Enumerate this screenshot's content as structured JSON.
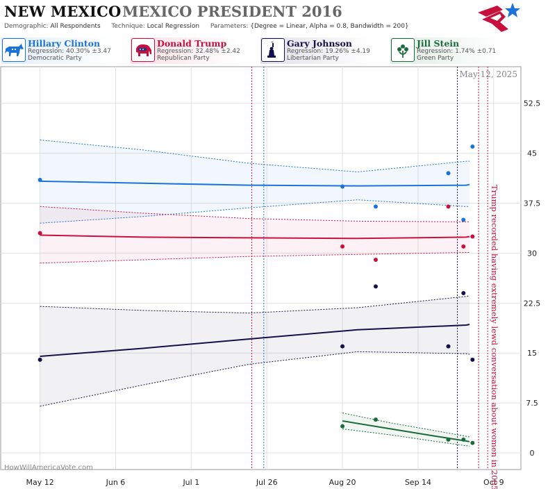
{
  "header": {
    "state": "NEW MEXICO",
    "race": "MEXICO PRESIDENT 2016",
    "demographic_label": "Demographic:",
    "demographic": "All Respondents",
    "technique_label": "Technique:",
    "technique": "Local Regression",
    "parameters_label": "Parameters:",
    "parameters": "{Degree = Linear, Alpha = 0.8, Bandwidth = 200}"
  },
  "candidates": [
    {
      "name": "Hillary Clinton",
      "regression": "Regression: 40.30% ±3.47",
      "party": "Democratic Party",
      "color": "#1a73d9",
      "icon": "donkey-icon"
    },
    {
      "name": "Donald Trump",
      "regression": "Regression: 32.48% ±2.42",
      "party": "Republican Party",
      "color": "#c8103e",
      "icon": "elephant-icon"
    },
    {
      "name": "Gary Johnson",
      "regression": "Regression: 19.26% ±4.19",
      "party": "Libertarian Party",
      "color": "#14104a",
      "icon": "statue-of-liberty-icon"
    },
    {
      "name": "Jill Stein",
      "regression": "Regression: 1.74% ±0.71",
      "party": "Green Party",
      "color": "#1a6b3a",
      "icon": "flower-icon"
    }
  ],
  "chart_data": {
    "type": "line",
    "date_stamp": "May 12, 2025",
    "watermark": "HowWillAmericaVote.com",
    "annotation": "Trump recorded having extremely lewd conversation about women in 2005",
    "x_ticks": [
      "May 12",
      "Jun 6",
      "Jul 1",
      "Jul 26",
      "Aug 20",
      "Sep 14",
      "Oct 9"
    ],
    "x_tick_dates": [
      "2016-05-12",
      "2016-06-06",
      "2016-07-01",
      "2016-07-26",
      "2016-08-20",
      "2016-09-14",
      "2016-10-09"
    ],
    "y_ticks": [
      0,
      7.5,
      15,
      22.5,
      30,
      37.5,
      45,
      52.5
    ],
    "ylim": [
      -2.5,
      58
    ],
    "xlim": [
      "2016-04-29",
      "2016-10-18"
    ],
    "event_lines": [
      {
        "date": "2016-07-21",
        "color": "#c8103e"
      },
      {
        "date": "2016-07-25",
        "color": "#1a73d9"
      },
      {
        "date": "2016-10-04",
        "color": "#c8103e"
      },
      {
        "date": "2016-10-07",
        "color": "#c8103e"
      },
      {
        "date": "2016-09-27",
        "color": "#14104a"
      }
    ],
    "series": [
      {
        "name": "Hillary Clinton",
        "color": "#1a73d9",
        "trend": [
          [
            "2016-05-12",
            40.8
          ],
          [
            "2016-06-15",
            40.5
          ],
          [
            "2016-07-20",
            40.2
          ],
          [
            "2016-08-25",
            40.1
          ],
          [
            "2016-09-30",
            40.2
          ],
          [
            "2016-10-01",
            40.3
          ]
        ],
        "upper": [
          [
            "2016-05-12",
            47.0
          ],
          [
            "2016-06-15",
            45.5
          ],
          [
            "2016-07-20",
            43.5
          ],
          [
            "2016-08-25",
            42.2
          ],
          [
            "2016-09-30",
            43.8
          ],
          [
            "2016-10-01",
            43.8
          ]
        ],
        "lower": [
          [
            "2016-05-12",
            34.5
          ],
          [
            "2016-06-15",
            35.5
          ],
          [
            "2016-07-20",
            36.8
          ],
          [
            "2016-08-25",
            38.0
          ],
          [
            "2016-09-30",
            37.0
          ],
          [
            "2016-10-01",
            37.0
          ]
        ],
        "points": [
          [
            "2016-05-12",
            41
          ],
          [
            "2016-08-20",
            40
          ],
          [
            "2016-08-31",
            37
          ],
          [
            "2016-09-24",
            42
          ],
          [
            "2016-09-29",
            35
          ],
          [
            "2016-10-02",
            46
          ]
        ]
      },
      {
        "name": "Donald Trump",
        "color": "#c8103e",
        "trend": [
          [
            "2016-05-12",
            32.7
          ],
          [
            "2016-06-15",
            32.4
          ],
          [
            "2016-07-20",
            32.3
          ],
          [
            "2016-08-25",
            32.2
          ],
          [
            "2016-09-30",
            32.4
          ],
          [
            "2016-10-01",
            32.5
          ]
        ],
        "upper": [
          [
            "2016-05-12",
            37.0
          ],
          [
            "2016-06-15",
            36.0
          ],
          [
            "2016-07-20",
            35.2
          ],
          [
            "2016-08-25",
            34.8
          ],
          [
            "2016-09-30",
            34.7
          ],
          [
            "2016-10-01",
            34.7
          ]
        ],
        "lower": [
          [
            "2016-05-12",
            28.5
          ],
          [
            "2016-06-15",
            29.0
          ],
          [
            "2016-07-20",
            29.5
          ],
          [
            "2016-08-25",
            29.8
          ],
          [
            "2016-09-30",
            30.1
          ],
          [
            "2016-10-01",
            30.1
          ]
        ],
        "points": [
          [
            "2016-05-12",
            33
          ],
          [
            "2016-08-20",
            31
          ],
          [
            "2016-08-31",
            29
          ],
          [
            "2016-09-24",
            37
          ],
          [
            "2016-09-29",
            31
          ],
          [
            "2016-10-02",
            32.5
          ]
        ]
      },
      {
        "name": "Gary Johnson",
        "color": "#14104a",
        "trend": [
          [
            "2016-05-12",
            14.5
          ],
          [
            "2016-06-15",
            15.7
          ],
          [
            "2016-07-20",
            17.1
          ],
          [
            "2016-08-25",
            18.5
          ],
          [
            "2016-09-30",
            19.2
          ],
          [
            "2016-10-01",
            19.3
          ]
        ],
        "upper": [
          [
            "2016-05-12",
            22.0
          ],
          [
            "2016-06-15",
            21.4
          ],
          [
            "2016-07-20",
            21.0
          ],
          [
            "2016-08-25",
            21.8
          ],
          [
            "2016-09-30",
            23.5
          ],
          [
            "2016-10-01",
            23.6
          ]
        ],
        "lower": [
          [
            "2016-05-12",
            7.0
          ],
          [
            "2016-06-15",
            10.2
          ],
          [
            "2016-07-20",
            13.3
          ],
          [
            "2016-08-25",
            15.2
          ],
          [
            "2016-09-30",
            14.9
          ],
          [
            "2016-10-01",
            14.8
          ]
        ],
        "points": [
          [
            "2016-05-12",
            14
          ],
          [
            "2016-08-20",
            16
          ],
          [
            "2016-08-31",
            25
          ],
          [
            "2016-09-24",
            16
          ],
          [
            "2016-09-29",
            24
          ],
          [
            "2016-10-02",
            14
          ]
        ]
      },
      {
        "name": "Jill Stein",
        "color": "#1a6b3a",
        "trend": [
          [
            "2016-08-20",
            4.8
          ],
          [
            "2016-09-05",
            3.6
          ],
          [
            "2016-09-20",
            2.5
          ],
          [
            "2016-10-01",
            1.7
          ]
        ],
        "upper": [
          [
            "2016-08-20",
            6.0
          ],
          [
            "2016-09-05",
            4.5
          ],
          [
            "2016-09-20",
            3.3
          ],
          [
            "2016-10-01",
            2.4
          ]
        ],
        "lower": [
          [
            "2016-08-20",
            3.6
          ],
          [
            "2016-09-05",
            2.7
          ],
          [
            "2016-09-20",
            1.7
          ],
          [
            "2016-10-01",
            1.0
          ]
        ],
        "points": [
          [
            "2016-08-20",
            4
          ],
          [
            "2016-08-31",
            5
          ],
          [
            "2016-09-24",
            2
          ],
          [
            "2016-09-29",
            2
          ],
          [
            "2016-10-02",
            1.5
          ]
        ]
      }
    ]
  }
}
